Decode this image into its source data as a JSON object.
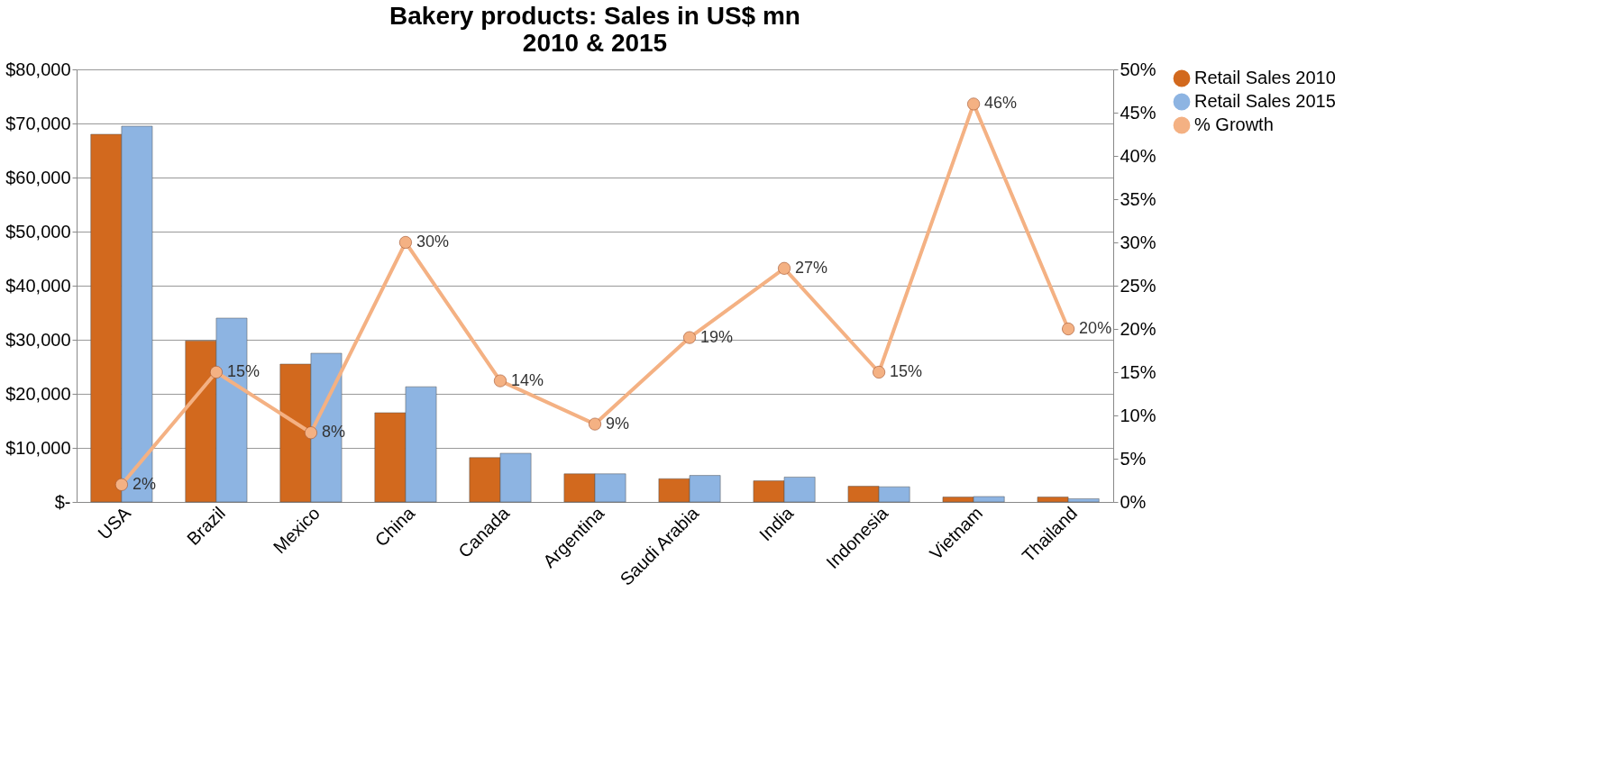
{
  "chart_data": {
    "type": "bar",
    "title": "Bakery products: Sales in US$ mn\n2010 & 2015",
    "categories": [
      "USA",
      "Brazil",
      "Mexico",
      "China",
      "Canada",
      "Argentina",
      "Saudi Arabia",
      "India",
      "Indonesia",
      "Vietnam",
      "Thailand"
    ],
    "series": [
      {
        "name": "Retail Sales 2010",
        "color": "#d2691e",
        "values": [
          68000,
          29800,
          25500,
          16500,
          8200,
          5200,
          4300,
          3900,
          2900,
          900,
          900
        ]
      },
      {
        "name": "Retail Sales 2015",
        "color": "#8db4e2",
        "values": [
          69500,
          34000,
          27500,
          21300,
          9000,
          5200,
          4900,
          4600,
          2800,
          1000,
          600
        ]
      },
      {
        "name": "% Growth",
        "type": "line",
        "axis": "y2",
        "color": "#f4b183",
        "marker": "circle",
        "data_labels": true,
        "value_labels": [
          "2%",
          "15%",
          "8%",
          "30%",
          "14%",
          "9%",
          "19%",
          "27%",
          "15%",
          "46%",
          "20%"
        ],
        "values": [
          2,
          15,
          8,
          30,
          14,
          9,
          19,
          27,
          15,
          46,
          20
        ]
      }
    ],
    "ylim": [
      0,
      80000
    ],
    "yticks": [
      {
        "value": 0,
        "label": "$-"
      },
      {
        "value": 10000,
        "label": "$10,000"
      },
      {
        "value": 20000,
        "label": "$20,000"
      },
      {
        "value": 30000,
        "label": "$30,000"
      },
      {
        "value": 40000,
        "label": "$40,000"
      },
      {
        "value": 50000,
        "label": "$50,000"
      },
      {
        "value": 60000,
        "label": "$60,000"
      },
      {
        "value": 70000,
        "label": "$70,000"
      },
      {
        "value": 80000,
        "label": "$80,000"
      }
    ],
    "y2lim": [
      0,
      50
    ],
    "y2ticks": [
      {
        "value": 0,
        "label": "0%"
      },
      {
        "value": 5,
        "label": "5%"
      },
      {
        "value": 10,
        "label": "10%"
      },
      {
        "value": 15,
        "label": "15%"
      },
      {
        "value": 20,
        "label": "20%"
      },
      {
        "value": 25,
        "label": "25%"
      },
      {
        "value": 30,
        "label": "30%"
      },
      {
        "value": 35,
        "label": "35%"
      },
      {
        "value": 40,
        "label": "40%"
      },
      {
        "value": 45,
        "label": "45%"
      },
      {
        "value": 50,
        "label": "50%"
      }
    ],
    "grid": "y",
    "legend": "right"
  }
}
